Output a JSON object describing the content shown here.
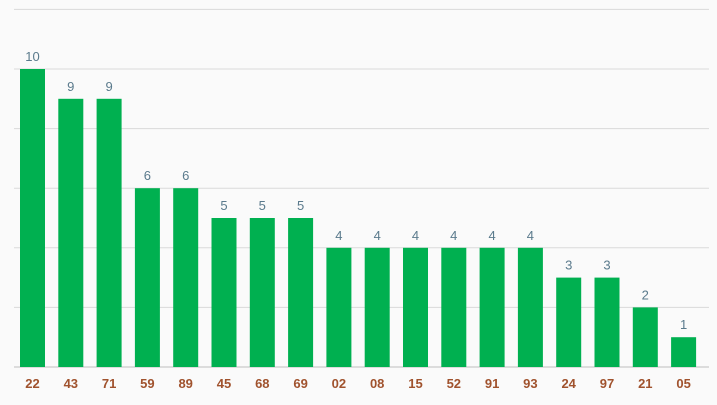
{
  "chart_data": {
    "type": "bar",
    "categories": [
      "22",
      "43",
      "71",
      "59",
      "89",
      "45",
      "68",
      "69",
      "02",
      "08",
      "15",
      "52",
      "91",
      "93",
      "24",
      "97",
      "21",
      "05"
    ],
    "values": [
      10,
      9,
      9,
      6,
      6,
      5,
      5,
      5,
      4,
      4,
      4,
      4,
      4,
      4,
      3,
      3,
      2,
      1
    ],
    "ylim": [
      0,
      12
    ],
    "grid": true,
    "data_labels": true,
    "title": "",
    "xlabel": "",
    "ylabel": ""
  },
  "colors": {
    "bar": "#00b050",
    "value_label": "#5a7a8c",
    "tick_label": "#a0522d",
    "grid": "#d9d9d9",
    "background": "#fafafa"
  }
}
